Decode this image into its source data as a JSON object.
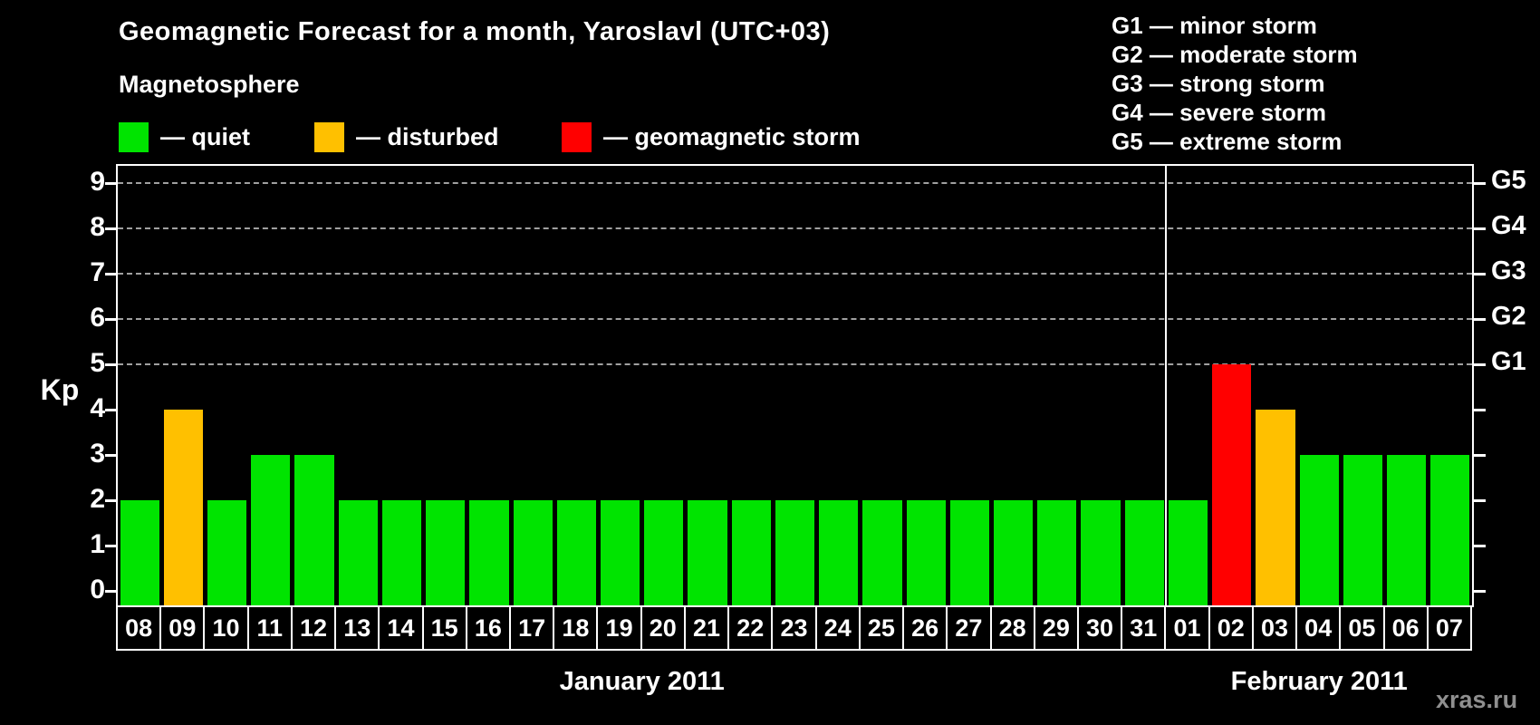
{
  "title": "Geomagnetic Forecast for a month, Yaroslavl (UTC+03)",
  "subtitle": "Magnetosphere",
  "legend": {
    "items": [
      {
        "name": "quiet",
        "label": "— quiet",
        "color": "#00e400"
      },
      {
        "name": "disturbed",
        "label": "— disturbed",
        "color": "#ffc000"
      },
      {
        "name": "storm",
        "label": "— geomagnetic storm",
        "color": "#ff0000"
      }
    ]
  },
  "g_legend": [
    "G1 — minor storm",
    "G2 — moderate storm",
    "G3 — strong storm",
    "G4 — severe storm",
    "G5 — extreme storm"
  ],
  "axes": {
    "y_label": "Kp",
    "y_ticks": [
      0,
      1,
      2,
      3,
      4,
      5,
      6,
      7,
      8,
      9
    ],
    "grid_levels": [
      5,
      6,
      7,
      8,
      9
    ],
    "g_ticks": [
      {
        "kp": 5,
        "label": "G1"
      },
      {
        "kp": 6,
        "label": "G2"
      },
      {
        "kp": 7,
        "label": "G3"
      },
      {
        "kp": 8,
        "label": "G4"
      },
      {
        "kp": 9,
        "label": "G5"
      }
    ]
  },
  "watermark": "xras.ru",
  "status_colors": {
    "quiet": "#00e400",
    "disturbed": "#ffc000",
    "storm": "#ff0000"
  },
  "chart_data": {
    "type": "bar",
    "title": "Geomagnetic Forecast for a month, Yaroslavl (UTC+03)",
    "xlabel": "",
    "ylabel": "Kp",
    "ylim": [
      0,
      9
    ],
    "grid": "horizontal dashed at Kp 5,6,7,8,9",
    "legend_position": "top",
    "categories": [
      "08",
      "09",
      "10",
      "11",
      "12",
      "13",
      "14",
      "15",
      "16",
      "17",
      "18",
      "19",
      "20",
      "21",
      "22",
      "23",
      "24",
      "25",
      "26",
      "27",
      "28",
      "29",
      "30",
      "31",
      "01",
      "02",
      "03",
      "04",
      "05",
      "06",
      "07"
    ],
    "values": [
      2,
      4,
      2,
      3,
      3,
      2,
      2,
      2,
      2,
      2,
      2,
      2,
      2,
      2,
      2,
      2,
      2,
      2,
      2,
      2,
      2,
      2,
      2,
      2,
      2,
      5,
      4,
      3,
      3,
      3,
      3
    ],
    "statuses": [
      "quiet",
      "disturbed",
      "quiet",
      "quiet",
      "quiet",
      "quiet",
      "quiet",
      "quiet",
      "quiet",
      "quiet",
      "quiet",
      "quiet",
      "quiet",
      "quiet",
      "quiet",
      "quiet",
      "quiet",
      "quiet",
      "quiet",
      "quiet",
      "quiet",
      "quiet",
      "quiet",
      "quiet",
      "quiet",
      "storm",
      "disturbed",
      "quiet",
      "quiet",
      "quiet",
      "quiet"
    ],
    "months": [
      {
        "label": "January 2011",
        "days": 24
      },
      {
        "label": "February 2011",
        "days": 7
      }
    ],
    "right_axis": {
      "G1": 5,
      "G2": 6,
      "G3": 7,
      "G4": 8,
      "G5": 9
    }
  }
}
